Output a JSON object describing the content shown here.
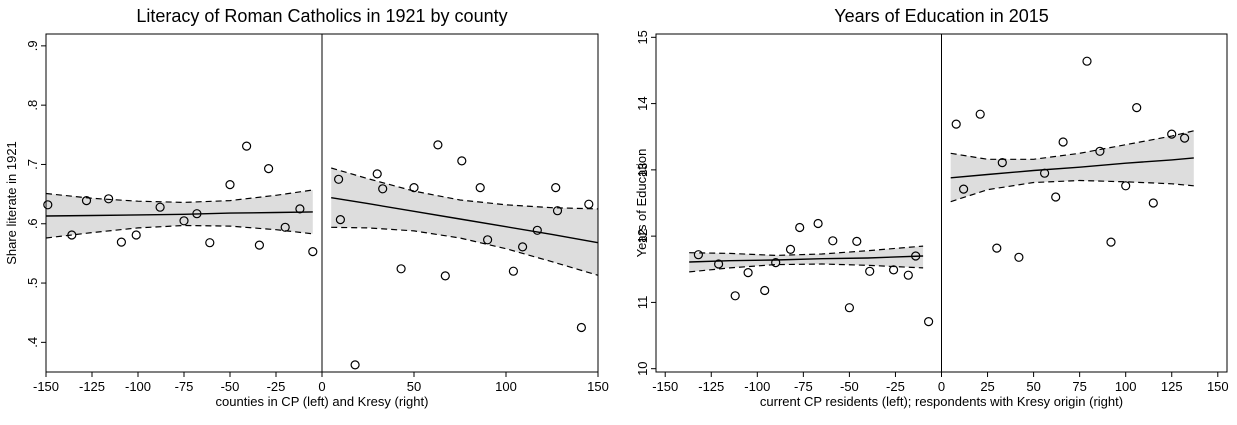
{
  "chart_data": [
    {
      "type": "scatter",
      "title": "Literacy of Roman Catholics in 1921 by county",
      "xlabel": "counties in CP (left) and Kresy (right)",
      "ylabel": "Share literate in 1921",
      "xlim": [
        -150,
        150
      ],
      "ylim": [
        0.35,
        0.92
      ],
      "x_ticks": [
        -150,
        -125,
        -100,
        -75,
        -50,
        -25,
        0,
        50,
        100,
        150
      ],
      "x_tick_labels": [
        "-150",
        "-125",
        "-100",
        "-75",
        "-50",
        "-25",
        "0",
        "50",
        "100",
        "150"
      ],
      "y_ticks": [
        0.4,
        0.5,
        0.6,
        0.7,
        0.8,
        0.9
      ],
      "y_tick_labels": [
        ".4",
        ".5",
        ".6",
        ".7",
        ".8",
        ".9"
      ],
      "cutoff": 0,
      "grid": false,
      "points": [
        {
          "x": -149,
          "y": 0.632
        },
        {
          "x": -136,
          "y": 0.581
        },
        {
          "x": -128,
          "y": 0.639
        },
        {
          "x": -116,
          "y": 0.642
        },
        {
          "x": -109,
          "y": 0.569
        },
        {
          "x": -101,
          "y": 0.581
        },
        {
          "x": -88,
          "y": 0.628
        },
        {
          "x": -75,
          "y": 0.605
        },
        {
          "x": -68,
          "y": 0.617
        },
        {
          "x": -61,
          "y": 0.568
        },
        {
          "x": -50,
          "y": 0.666
        },
        {
          "x": -41,
          "y": 0.731
        },
        {
          "x": -34,
          "y": 0.564
        },
        {
          "x": -29,
          "y": 0.693
        },
        {
          "x": -20,
          "y": 0.594
        },
        {
          "x": -12,
          "y": 0.625
        },
        {
          "x": -5,
          "y": 0.553
        },
        {
          "x": 9,
          "y": 0.675
        },
        {
          "x": 10,
          "y": 0.607
        },
        {
          "x": 18,
          "y": 0.362
        },
        {
          "x": 30,
          "y": 0.684
        },
        {
          "x": 33,
          "y": 0.659
        },
        {
          "x": 43,
          "y": 0.524
        },
        {
          "x": 50,
          "y": 0.661
        },
        {
          "x": 63,
          "y": 0.733
        },
        {
          "x": 67,
          "y": 0.512
        },
        {
          "x": 76,
          "y": 0.706
        },
        {
          "x": 86,
          "y": 0.661
        },
        {
          "x": 90,
          "y": 0.573
        },
        {
          "x": 104,
          "y": 0.52
        },
        {
          "x": 109,
          "y": 0.561
        },
        {
          "x": 117,
          "y": 0.589
        },
        {
          "x": 127,
          "y": 0.661
        },
        {
          "x": 128,
          "y": 0.622
        },
        {
          "x": 141,
          "y": 0.425
        },
        {
          "x": 145,
          "y": 0.633
        }
      ],
      "fits": [
        {
          "x": [
            -150,
            -125,
            -100,
            -75,
            -50,
            -25,
            -5
          ],
          "fit": [
            0.613,
            0.614,
            0.615,
            0.616,
            0.618,
            0.619,
            0.62
          ],
          "lower": [
            0.576,
            0.585,
            0.593,
            0.597,
            0.596,
            0.59,
            0.583
          ],
          "upper": [
            0.651,
            0.643,
            0.638,
            0.636,
            0.639,
            0.648,
            0.657
          ]
        },
        {
          "x": [
            5,
            25,
            50,
            75,
            100,
            125,
            150
          ],
          "fit": [
            0.644,
            0.634,
            0.621,
            0.608,
            0.595,
            0.582,
            0.568
          ],
          "lower": [
            0.594,
            0.593,
            0.588,
            0.576,
            0.558,
            0.536,
            0.513
          ],
          "upper": [
            0.694,
            0.676,
            0.655,
            0.64,
            0.632,
            0.627,
            0.625
          ]
        }
      ]
    },
    {
      "type": "scatter",
      "title": "Years of Education in 2015",
      "xlabel": "current CP residents (left); respondents with Kresy origin (right)",
      "ylabel": "Years of Education",
      "xlim": [
        -155,
        155
      ],
      "ylim": [
        9.95,
        15.05
      ],
      "x_ticks": [
        -150,
        -125,
        -100,
        -75,
        -50,
        -25,
        0,
        25,
        50,
        75,
        100,
        125,
        150
      ],
      "x_tick_labels": [
        "-150",
        "-125",
        "-100",
        "-75",
        "-50",
        "-25",
        "0",
        "25",
        "50",
        "75",
        "100",
        "125",
        "150"
      ],
      "y_ticks": [
        10,
        11,
        12,
        13,
        14,
        15
      ],
      "y_tick_labels": [
        "10",
        "11",
        "12",
        "13",
        "14",
        "15"
      ],
      "cutoff": 0,
      "grid": false,
      "points": [
        {
          "x": -132,
          "y": 11.72
        },
        {
          "x": -121,
          "y": 11.58
        },
        {
          "x": -112,
          "y": 11.1
        },
        {
          "x": -105,
          "y": 11.45
        },
        {
          "x": -96,
          "y": 11.18
        },
        {
          "x": -90,
          "y": 11.6
        },
        {
          "x": -82,
          "y": 11.8
        },
        {
          "x": -77,
          "y": 12.13
        },
        {
          "x": -67,
          "y": 12.19
        },
        {
          "x": -59,
          "y": 11.93
        },
        {
          "x": -50,
          "y": 10.92
        },
        {
          "x": -46,
          "y": 11.92
        },
        {
          "x": -39,
          "y": 11.47
        },
        {
          "x": -26,
          "y": 11.49
        },
        {
          "x": -18,
          "y": 11.41
        },
        {
          "x": -14,
          "y": 11.7
        },
        {
          "x": -7,
          "y": 10.71
        },
        {
          "x": 8,
          "y": 13.69
        },
        {
          "x": 12,
          "y": 12.71
        },
        {
          "x": 21,
          "y": 13.84
        },
        {
          "x": 30,
          "y": 11.82
        },
        {
          "x": 33,
          "y": 13.11
        },
        {
          "x": 42,
          "y": 11.68
        },
        {
          "x": 56,
          "y": 12.95
        },
        {
          "x": 62,
          "y": 12.59
        },
        {
          "x": 66,
          "y": 13.42
        },
        {
          "x": 79,
          "y": 14.64
        },
        {
          "x": 86,
          "y": 13.28
        },
        {
          "x": 92,
          "y": 11.91
        },
        {
          "x": 100,
          "y": 12.76
        },
        {
          "x": 106,
          "y": 13.94
        },
        {
          "x": 115,
          "y": 12.5
        },
        {
          "x": 125,
          "y": 13.54
        },
        {
          "x": 132,
          "y": 13.48
        }
      ],
      "fits": [
        {
          "x": [
            -137,
            -115,
            -90,
            -65,
            -40,
            -10
          ],
          "fit": [
            11.61,
            11.63,
            11.64,
            11.66,
            11.67,
            11.7
          ],
          "lower": [
            11.46,
            11.52,
            11.57,
            11.58,
            11.56,
            11.52
          ],
          "upper": [
            11.75,
            11.74,
            11.71,
            11.73,
            11.78,
            11.85
          ]
        },
        {
          "x": [
            5,
            25,
            50,
            75,
            100,
            125,
            137
          ],
          "fit": [
            12.88,
            12.93,
            12.99,
            13.04,
            13.1,
            13.15,
            13.18
          ],
          "lower": [
            12.52,
            12.7,
            12.81,
            12.84,
            12.82,
            12.79,
            12.76
          ],
          "upper": [
            13.25,
            13.16,
            13.16,
            13.25,
            13.38,
            13.51,
            13.59
          ]
        }
      ]
    }
  ]
}
